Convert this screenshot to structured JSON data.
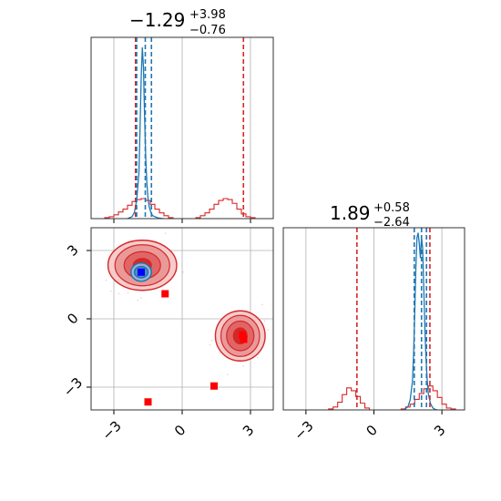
{
  "chart_data": {
    "type": "corner",
    "parameters": [
      "",
      ""
    ],
    "axis_range": [
      -4,
      4
    ],
    "ticks": [
      -3,
      0,
      3
    ],
    "tick_labels": [
      "−3",
      "0",
      "3"
    ],
    "grid": true,
    "colors": {
      "red": "#d62728",
      "blue": "#1f77b4",
      "marker_red": "#ff0000",
      "marker_blue": "#0000ff"
    },
    "titles": [
      {
        "median": "−1.29",
        "upper": "+3.98",
        "lower": "−0.76"
      },
      {
        "median": "1.89",
        "upper": "+0.58",
        "lower": "−2.64"
      }
    ],
    "marginals": [
      {
        "red_hist": {
          "bin_edges": [
            -3.6,
            -3.4,
            -3.2,
            -3.0,
            -2.8,
            -2.6,
            -2.4,
            -2.2,
            -2.0,
            -1.8,
            -1.6,
            -1.4,
            -1.2,
            -1.0,
            -0.8,
            -0.6,
            -0.4,
            -0.2,
            0.0,
            0.2,
            0.4,
            0.6,
            0.8,
            1.0,
            1.2,
            1.4,
            1.6,
            1.8,
            2.0,
            2.2,
            2.4,
            2.6,
            2.8,
            3.0,
            3.2,
            3.4,
            3.6,
            3.8,
            4.0
          ],
          "counts": [
            0,
            1,
            2,
            4,
            7,
            10,
            14,
            18,
            20,
            21,
            19,
            15,
            10,
            6,
            3,
            1,
            0,
            0,
            0,
            0,
            0,
            1,
            3,
            6,
            10,
            15,
            19,
            21,
            20,
            16,
            10,
            5,
            2,
            1,
            0,
            0,
            0,
            0
          ]
        },
        "blue_curve": {
          "x": [
            -2.4,
            -2.2,
            -2.1,
            -2.0,
            -1.9,
            -1.85,
            -1.8,
            -1.75,
            -1.7,
            -1.65,
            -1.6,
            -1.55,
            -1.5,
            -1.45,
            -1.4,
            -1.35,
            -1.3,
            -1.2,
            -1.1,
            -1.0,
            -0.9,
            -0.8
          ],
          "y": [
            0,
            2,
            6,
            18,
            45,
            90,
            140,
            170,
            150,
            100,
            60,
            35,
            20,
            12,
            8,
            5,
            3,
            2,
            1,
            0.5,
            0.2,
            0
          ]
        },
        "red_quantiles": [
          -2.05,
          2.69
        ],
        "blue_quantiles": [
          -2.0,
          -1.62,
          -1.35
        ],
        "red_hist_max": 170
      },
      {
        "red_hist": {
          "bin_edges": [
            -4.0,
            -3.8,
            -3.6,
            -3.4,
            -3.2,
            -3.0,
            -2.8,
            -2.6,
            -2.4,
            -2.2,
            -2.0,
            -1.8,
            -1.6,
            -1.4,
            -1.2,
            -1.0,
            -0.8,
            -0.6,
            -0.4,
            -0.2,
            0.0,
            0.2,
            0.4,
            0.6,
            0.8,
            1.0,
            1.2,
            1.4,
            1.6,
            1.8,
            2.0,
            2.2,
            2.4,
            2.6,
            2.8,
            3.0,
            3.2,
            3.4,
            3.6,
            3.8
          ],
          "counts": [
            0,
            0,
            0,
            0,
            0,
            0,
            0,
            0,
            0,
            0,
            1,
            3,
            8,
            16,
            23,
            20,
            14,
            7,
            2,
            0,
            0,
            0,
            0,
            0,
            0,
            0,
            1,
            3,
            6,
            11,
            17,
            22,
            25,
            20,
            13,
            6,
            2,
            1,
            0
          ]
        },
        "blue_curve": {
          "x": [
            1.3,
            1.5,
            1.6,
            1.7,
            1.75,
            1.8,
            1.85,
            1.9,
            1.95,
            2.0,
            2.05,
            2.1,
            2.15,
            2.2,
            2.25,
            2.3,
            2.35,
            2.4,
            2.5,
            2.6,
            2.7,
            2.8
          ],
          "y": [
            0,
            3,
            10,
            28,
            55,
            95,
            140,
            170,
            175,
            165,
            150,
            170,
            160,
            120,
            80,
            50,
            30,
            16,
            6,
            2,
            0.5,
            0
          ]
        },
        "red_quantiles": [
          -0.75,
          2.47
        ],
        "blue_quantiles": [
          1.78,
          2.1,
          2.32
        ],
        "red_hist_max": 180
      }
    ],
    "joint": {
      "red_modes": [
        {
          "cx": -1.75,
          "cy": 2.35,
          "rx": [
            1.45,
            1.2,
            0.8,
            0.4
          ],
          "ry": [
            1.1,
            0.9,
            0.6,
            0.3
          ]
        },
        {
          "cx": 2.55,
          "cy": -0.75,
          "rx": [
            1.05,
            0.85,
            0.6,
            0.3
          ],
          "ry": [
            1.1,
            0.9,
            0.65,
            0.35
          ]
        }
      ],
      "blue_mode": {
        "cx": -1.8,
        "cy": 2.05,
        "rx": [
          0.45,
          0.3
        ],
        "ry": [
          0.4,
          0.25
        ]
      },
      "red_squares": [
        {
          "x": -0.75,
          "y": 1.1
        },
        {
          "x": 1.4,
          "y": -2.95
        },
        {
          "x": -1.5,
          "y": -3.65
        },
        {
          "x": 2.7,
          "y": -0.9
        },
        {
          "x": 2.65,
          "y": -0.7
        }
      ],
      "blue_square": {
        "x": -1.8,
        "y": 2.05
      }
    }
  }
}
